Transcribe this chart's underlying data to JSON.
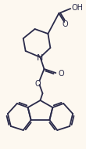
{
  "bg_color": "#fdf8f0",
  "line_color": "#2a2a4a",
  "line_width": 1.3,
  "font_size": 7.0,
  "fig_width": 1.1,
  "fig_height": 1.9,
  "dpi": 100,
  "xlim": [
    0,
    110
  ],
  "ylim": [
    0,
    190
  ]
}
